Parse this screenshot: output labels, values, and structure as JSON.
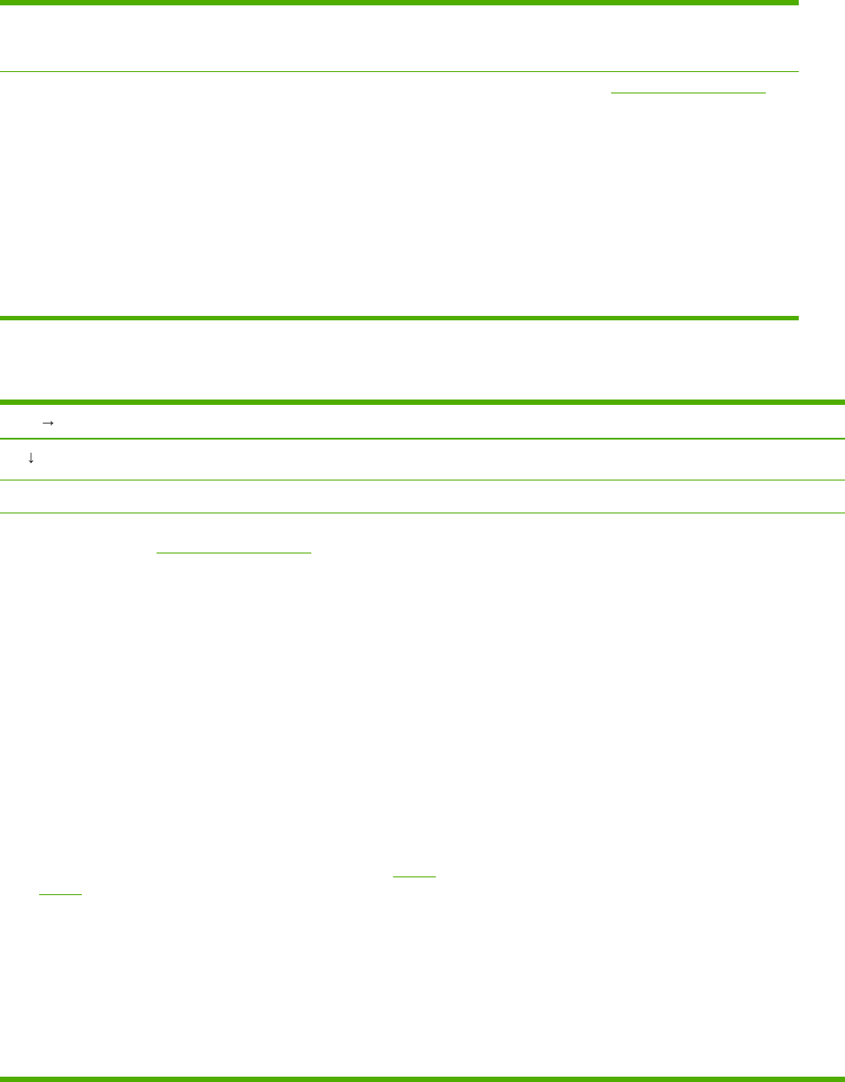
{
  "colors": {
    "rule": "#4fad00",
    "icon": "#222222"
  },
  "icons": {
    "row1": "arrow-right-icon",
    "row2": "arrow-down-icon"
  },
  "glyphs": {
    "arrow_right": "→",
    "arrow_down": "↓"
  }
}
